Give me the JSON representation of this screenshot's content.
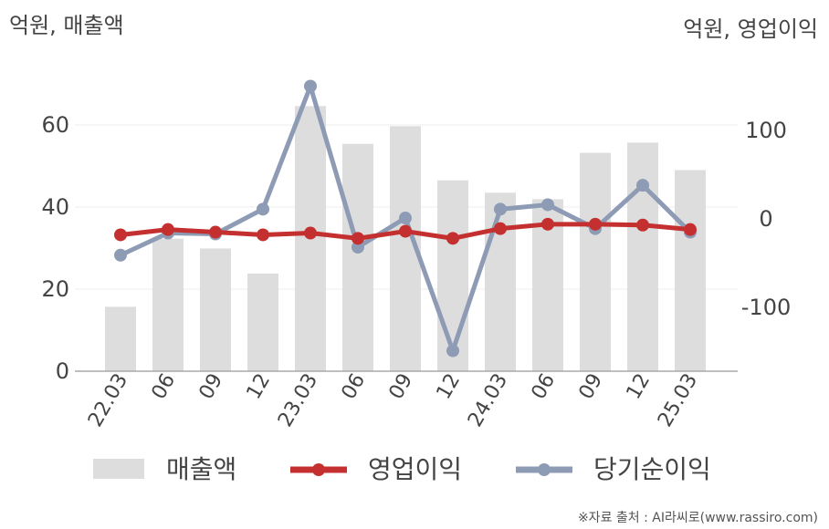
{
  "chart_data": {
    "type": "bar",
    "title": "",
    "left_axis_label": "억원, 매출액",
    "right_axis_label": "억원, 영업이익",
    "categories": [
      "22.03",
      "06",
      "09",
      "12",
      "23.03",
      "06",
      "09",
      "12",
      "24.03",
      "06",
      "09",
      "12",
      "25.03"
    ],
    "left_ylim": [
      0,
      80
    ],
    "left_ticks": [
      0,
      20,
      40,
      60
    ],
    "right_ylim": [
      -173,
      183
    ],
    "right_ticks": [
      100,
      0,
      -100
    ],
    "right_tick_labels": [
      "100",
      "0",
      "-100"
    ],
    "grid": true,
    "legend_position": "bottom",
    "series": [
      {
        "name": "매출액",
        "type": "bar",
        "axis": "left",
        "color": "#dddddd",
        "values": [
          15.7,
          32.3,
          29.9,
          23.8,
          64.6,
          55.4,
          59.7,
          46.5,
          43.5,
          41.9,
          53.2,
          55.7,
          49.0
        ]
      },
      {
        "name": "영업이익",
        "type": "line",
        "axis": "right",
        "color": "#c43030",
        "values": [
          -18,
          -12,
          -15,
          -18,
          -16,
          -22,
          -14,
          -22,
          -11,
          -6,
          -6,
          -7,
          -12
        ]
      },
      {
        "name": "당기순이익",
        "type": "line",
        "axis": "right",
        "color": "#8e9bb5",
        "values": [
          -41,
          -16,
          -17,
          11,
          150,
          -32,
          1,
          -149,
          11,
          16,
          -11,
          38,
          -15
        ]
      }
    ]
  },
  "source": "※자료 출처 : AI라씨로(www.rassiro.com)"
}
